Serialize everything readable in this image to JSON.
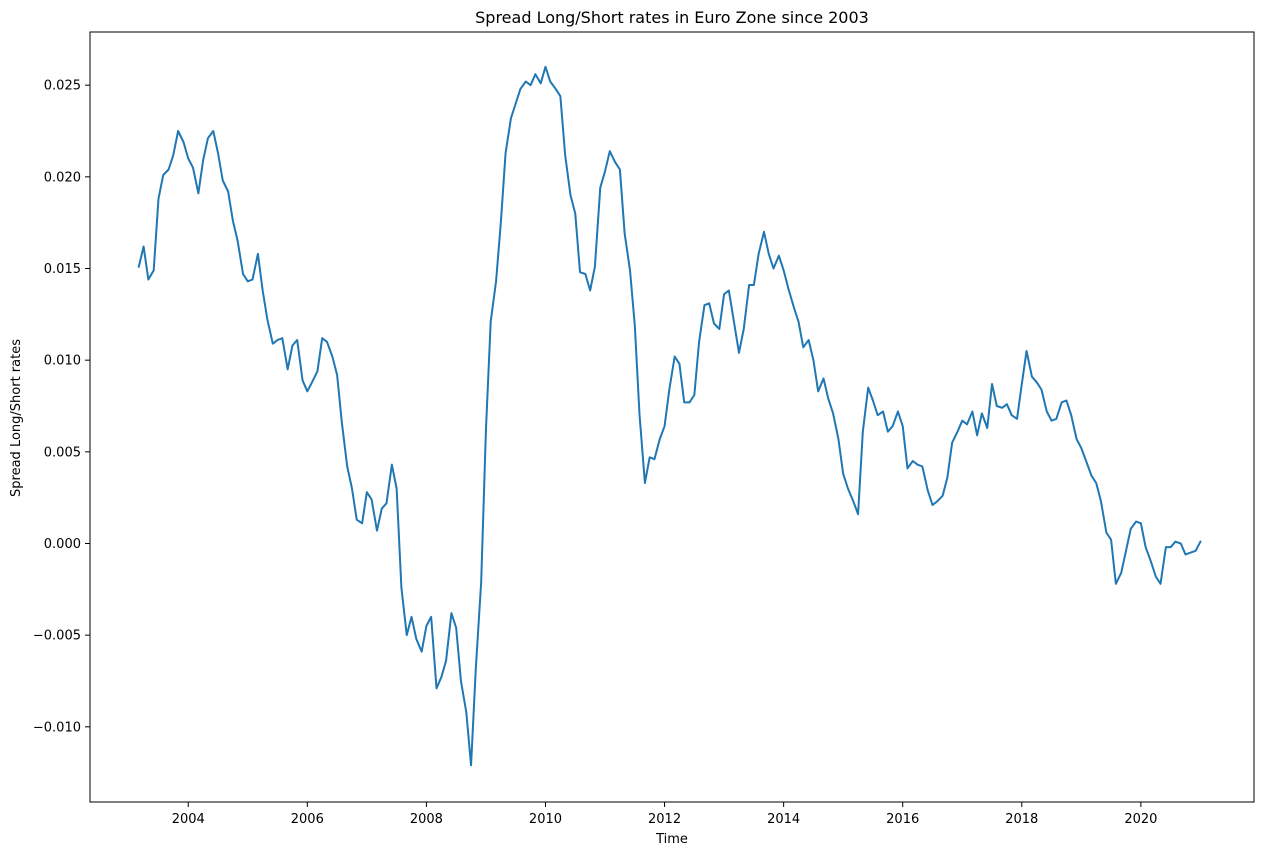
{
  "chart_data": {
    "type": "line",
    "title": "Spread Long/Short rates in Euro Zone since 2003",
    "xlabel": "Time",
    "ylabel": "Spread Long/Short rates",
    "xlim": [
      2002.35,
      2021.9
    ],
    "ylim": [
      -0.0141,
      0.0279
    ],
    "x_ticks": [
      2004,
      2006,
      2008,
      2010,
      2012,
      2014,
      2016,
      2018,
      2020
    ],
    "x_tick_labels": [
      "2004",
      "2006",
      "2008",
      "2010",
      "2012",
      "2014",
      "2016",
      "2018",
      "2020"
    ],
    "y_ticks": [
      -0.01,
      -0.005,
      0.0,
      0.005,
      0.01,
      0.015,
      0.02,
      0.025
    ],
    "y_tick_labels": [
      "−0.010",
      "−0.005",
      "0.000",
      "0.005",
      "0.010",
      "0.015",
      "0.020",
      "0.025"
    ],
    "grid": false,
    "color": "#1f77b4",
    "series": [
      {
        "x": [
          2003.17,
          2003.25,
          2003.33,
          2003.42,
          2003.5,
          2003.58,
          2003.67,
          2003.75,
          2003.83,
          2003.92,
          2004.0,
          2004.08,
          2004.17,
          2004.25,
          2004.33,
          2004.42,
          2004.5,
          2004.58,
          2004.67,
          2004.75,
          2004.83,
          2004.92,
          2005.0,
          2005.08,
          2005.17,
          2005.25,
          2005.33,
          2005.42,
          2005.5,
          2005.58,
          2005.67,
          2005.75,
          2005.83,
          2005.92,
          2006.0,
          2006.08,
          2006.17,
          2006.25,
          2006.33,
          2006.42,
          2006.5,
          2006.58,
          2006.67,
          2006.75,
          2006.83,
          2006.92,
          2007.0,
          2007.08,
          2007.17,
          2007.25,
          2007.33,
          2007.42,
          2007.5,
          2007.58,
          2007.67,
          2007.75,
          2007.83,
          2007.92,
          2008.0,
          2008.08,
          2008.17,
          2008.25,
          2008.33,
          2008.42,
          2008.5,
          2008.58,
          2008.67,
          2008.75,
          2008.83,
          2008.92,
          2009.0,
          2009.08,
          2009.17,
          2009.25,
          2009.33,
          2009.42,
          2009.5,
          2009.58,
          2009.67,
          2009.75,
          2009.83,
          2009.92,
          2010.0,
          2010.08,
          2010.17,
          2010.25,
          2010.33,
          2010.42,
          2010.5,
          2010.58,
          2010.67,
          2010.75,
          2010.83,
          2010.92,
          2011.0,
          2011.08,
          2011.17,
          2011.25,
          2011.33,
          2011.42,
          2011.5,
          2011.58,
          2011.67,
          2011.75,
          2011.83,
          2011.92,
          2012.0,
          2012.08,
          2012.17,
          2012.25,
          2012.33,
          2012.42,
          2012.5,
          2012.58,
          2012.67,
          2012.75,
          2012.83,
          2012.92,
          2013.0,
          2013.08,
          2013.17,
          2013.25,
          2013.33,
          2013.42,
          2013.5,
          2013.58,
          2013.67,
          2013.75,
          2013.83,
          2013.92,
          2014.0,
          2014.08,
          2014.17,
          2014.25,
          2014.33,
          2014.42,
          2014.5,
          2014.58,
          2014.67,
          2014.75,
          2014.83,
          2014.92,
          2015.0,
          2015.08,
          2015.17,
          2015.25,
          2015.33,
          2015.42,
          2015.5,
          2015.58,
          2015.67,
          2015.75,
          2015.83,
          2015.92,
          2016.0,
          2016.08,
          2016.17,
          2016.25,
          2016.33,
          2016.42,
          2016.5,
          2016.58,
          2016.67,
          2016.75,
          2016.83,
          2016.92,
          2017.0,
          2017.08,
          2017.17,
          2017.25,
          2017.33,
          2017.42,
          2017.5,
          2017.58,
          2017.67,
          2017.75,
          2017.83,
          2017.92,
          2018.0,
          2018.08,
          2018.17,
          2018.25,
          2018.33,
          2018.42,
          2018.5,
          2018.58,
          2018.67,
          2018.75,
          2018.83,
          2018.92,
          2019.0,
          2019.08,
          2019.17,
          2019.25,
          2019.33,
          2019.42,
          2019.5,
          2019.58,
          2019.67,
          2019.75,
          2019.83,
          2019.92,
          2020.0,
          2020.08,
          2020.17,
          2020.25,
          2020.33,
          2020.42,
          2020.5,
          2020.58,
          2020.67,
          2020.75,
          2020.83,
          2020.92,
          2021.0
        ],
        "y": [
          0.0151,
          0.0162,
          0.0144,
          0.0149,
          0.0188,
          0.0201,
          0.0204,
          0.0212,
          0.0225,
          0.0219,
          0.021,
          0.0205,
          0.0191,
          0.0209,
          0.0221,
          0.0225,
          0.0213,
          0.0198,
          0.0192,
          0.0176,
          0.0165,
          0.0147,
          0.0143,
          0.0144,
          0.0158,
          0.0138,
          0.0122,
          0.0109,
          0.0111,
          0.0112,
          0.0095,
          0.0108,
          0.0111,
          0.0089,
          0.0083,
          0.0088,
          0.0094,
          0.0112,
          0.011,
          0.0102,
          0.0092,
          0.0066,
          0.0042,
          0.003,
          0.0013,
          0.0011,
          0.0028,
          0.0024,
          0.0007,
          0.0019,
          0.0022,
          0.0043,
          0.003,
          -0.0024,
          -0.005,
          -0.004,
          -0.0052,
          -0.0059,
          -0.0045,
          -0.004,
          -0.0079,
          -0.0073,
          -0.0064,
          -0.0038,
          -0.0046,
          -0.0075,
          -0.0092,
          -0.0121,
          -0.0068,
          -0.0021,
          0.0062,
          0.0121,
          0.0143,
          0.0175,
          0.0213,
          0.0232,
          0.024,
          0.0248,
          0.0252,
          0.025,
          0.0256,
          0.0251,
          0.026,
          0.0252,
          0.0248,
          0.0244,
          0.0212,
          0.019,
          0.018,
          0.0148,
          0.0147,
          0.0138,
          0.0151,
          0.0194,
          0.0203,
          0.0214,
          0.0208,
          0.0204,
          0.0169,
          0.0149,
          0.0119,
          0.007,
          0.0033,
          0.0047,
          0.0046,
          0.0057,
          0.0064,
          0.0084,
          0.0102,
          0.0098,
          0.0077,
          0.0077,
          0.0081,
          0.011,
          0.013,
          0.0131,
          0.012,
          0.0117,
          0.0136,
          0.0138,
          0.012,
          0.0104,
          0.0117,
          0.0141,
          0.0141,
          0.0158,
          0.017,
          0.0158,
          0.015,
          0.0157,
          0.0149,
          0.0139,
          0.0129,
          0.0121,
          0.0107,
          0.0111,
          0.01,
          0.0083,
          0.009,
          0.0079,
          0.0071,
          0.0057,
          0.0038,
          0.003,
          0.0023,
          0.0016,
          0.0061,
          0.0085,
          0.0078,
          0.007,
          0.0072,
          0.0061,
          0.0064,
          0.0072,
          0.0064,
          0.0041,
          0.0045,
          0.0043,
          0.0042,
          0.0029,
          0.0021,
          0.0023,
          0.0026,
          0.0036,
          0.0055,
          0.0061,
          0.0067,
          0.0065,
          0.0072,
          0.0059,
          0.0071,
          0.0063,
          0.0087,
          0.0075,
          0.0074,
          0.0076,
          0.007,
          0.0068,
          0.0087,
          0.0105,
          0.0091,
          0.0088,
          0.0084,
          0.0072,
          0.0067,
          0.0068,
          0.0077,
          0.0078,
          0.007,
          0.0057,
          0.0052,
          0.0045,
          0.0037,
          0.0033,
          0.0023,
          0.0006,
          0.0002,
          -0.0022,
          -0.0016,
          -0.0004,
          0.0008,
          0.0012,
          0.0011,
          -0.0002,
          -0.001,
          -0.0018,
          -0.0022,
          -0.0002,
          -0.0002,
          0.0001,
          0.0,
          -0.0006,
          -0.0005,
          -0.0004,
          0.0001
        ]
      }
    ]
  }
}
